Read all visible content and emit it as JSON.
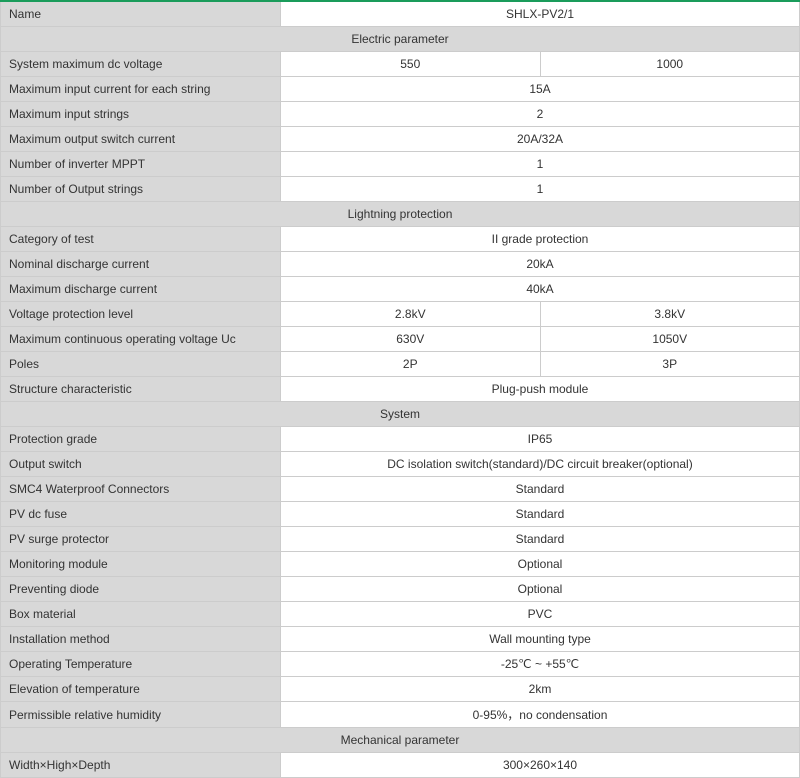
{
  "header": {
    "name_label": "Name",
    "model": "SHLX-PV2/1"
  },
  "sections": {
    "electric": "Electric parameter",
    "lightning": "Lightning protection",
    "system": "System",
    "mechanical": "Mechanical parameter"
  },
  "electric": {
    "sys_max_dc_voltage": {
      "label": "System maximum dc voltage",
      "a": "550",
      "b": "1000"
    },
    "max_input_current": {
      "label": "Maximum input current for each string",
      "v": "15A"
    },
    "max_input_strings": {
      "label": "Maximum input strings",
      "v": "2"
    },
    "max_output_switch": {
      "label": "Maximum output switch current",
      "v": "20A/32A"
    },
    "inverter_mppt": {
      "label": "Number of inverter MPPT",
      "v": "1"
    },
    "output_strings": {
      "label": "Number of Output strings",
      "v": "1"
    }
  },
  "lightning": {
    "category": {
      "label": "Category of test",
      "v": "II grade protection"
    },
    "nominal": {
      "label": "Nominal discharge current",
      "v": "20kA"
    },
    "maximum": {
      "label": "Maximum discharge current",
      "v": "40kA"
    },
    "vpl": {
      "label": "Voltage protection level",
      "a": "2.8kV",
      "b": "3.8kV"
    },
    "uc": {
      "label": "Maximum continuous operating voltage Uc",
      "a": "630V",
      "b": "1050V"
    },
    "poles": {
      "label": "Poles",
      "a": "2P",
      "b": "3P"
    },
    "structure": {
      "label": "Structure characteristic",
      "v": "Plug-push module"
    }
  },
  "system": {
    "protection": {
      "label": "Protection grade",
      "v": "IP65"
    },
    "output_sw": {
      "label": "Output switch",
      "v": "DC isolation switch(standard)/DC circuit breaker(optional)"
    },
    "smc4": {
      "label": "SMC4 Waterproof Connectors",
      "v": "Standard"
    },
    "fuse": {
      "label": "PV dc fuse",
      "v": "Standard"
    },
    "surge": {
      "label": "PV surge protector",
      "v": "Standard"
    },
    "monitoring": {
      "label": "Monitoring module",
      "v": "Optional"
    },
    "diode": {
      "label": "Preventing diode",
      "v": "Optional"
    },
    "box": {
      "label": "Box material",
      "v": "PVC"
    },
    "install": {
      "label": "Installation method",
      "v": "Wall mounting type"
    },
    "temp": {
      "label": "Operating Temperature",
      "v": "-25℃ ~ +55℃"
    },
    "elevation": {
      "label": "Elevation of temperature",
      "v": "2km"
    },
    "humidity": {
      "label": "Permissible relative humidity",
      "v": "0-95%，no condensation"
    }
  },
  "mechanical": {
    "dims": {
      "label": "Width×High×Depth",
      "v": "300×260×140"
    }
  }
}
